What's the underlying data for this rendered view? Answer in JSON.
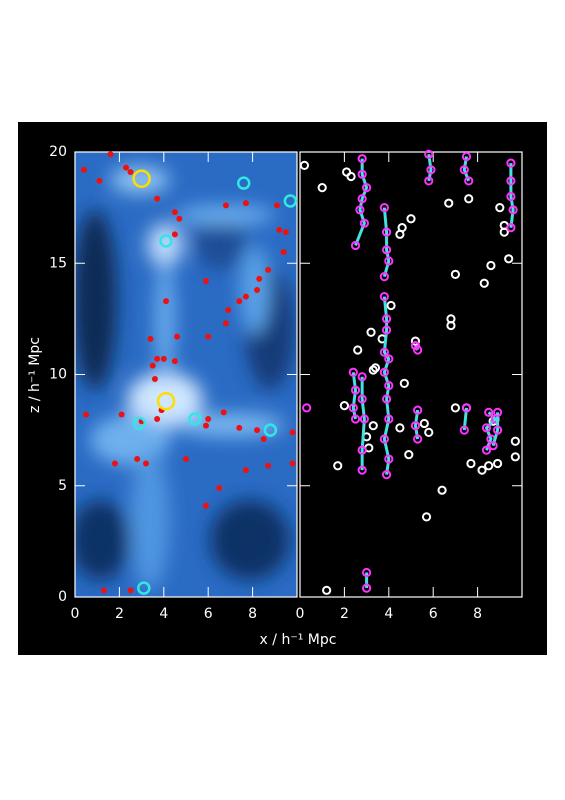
{
  "chart_data": [
    {
      "type": "scatter",
      "xlabel": "x / h⁻¹ Mpc",
      "ylabel": "z / h⁻¹ Mpc",
      "xlim": [
        0,
        10
      ],
      "ylim": [
        0,
        20
      ],
      "xticks": [
        0,
        2,
        4,
        6,
        8
      ],
      "yticks": [
        0,
        5,
        10,
        15,
        20
      ],
      "background": "density",
      "series": [
        {
          "color": "#ee1111",
          "marker": "dot",
          "x": [
            0.4,
            1.6,
            1.1,
            2.3,
            2.5,
            3.7,
            4.5,
            4.7,
            4.5,
            6.8,
            7.7,
            9.1,
            9.2,
            9.5,
            9.4,
            8.7,
            8.3,
            8.2,
            7.7,
            7.4,
            5.9,
            4.1,
            6.9,
            6.8,
            3.4,
            4.6,
            6.0,
            3.7,
            4.0,
            4.5,
            3.5,
            3.6,
            3.9,
            0.5,
            2.1,
            3.0,
            3.7,
            6.0,
            6.7,
            7.4,
            8.2,
            8.5,
            9.8,
            5.9,
            1.8,
            2.8,
            3.2,
            5.0,
            7.7,
            8.7,
            9.8,
            6.5,
            5.9,
            1.3,
            2.5
          ],
          "values": [
            19.2,
            19.9,
            18.7,
            19.3,
            19.1,
            17.9,
            17.3,
            17.0,
            16.3,
            17.6,
            17.7,
            17.6,
            16.5,
            16.4,
            15.5,
            14.7,
            14.3,
            13.8,
            13.5,
            13.3,
            14.2,
            13.3,
            12.9,
            12.3,
            11.6,
            11.7,
            11.7,
            10.7,
            10.7,
            10.6,
            10.4,
            9.8,
            8.4,
            8.2,
            8.2,
            7.9,
            8.0,
            8.0,
            8.3,
            7.6,
            7.5,
            7.1,
            7.4,
            7.7,
            6.0,
            6.2,
            6.0,
            6.2,
            5.7,
            5.9,
            6.0,
            4.9,
            4.1,
            0.3,
            0.3
          ]
        },
        {
          "color": "#33e6e6",
          "marker": "ring",
          "x": [
            4.1,
            7.6,
            9.7,
            2.9,
            5.4,
            8.8,
            3.1
          ],
          "values": [
            16.0,
            18.6,
            17.8,
            7.8,
            8.0,
            7.5,
            0.4
          ]
        },
        {
          "color": "#ffdd00",
          "marker": "big-ring",
          "x": [
            3.0,
            4.1
          ],
          "values": [
            18.8,
            8.8
          ]
        }
      ]
    },
    {
      "type": "scatter",
      "xlim": [
        0,
        10
      ],
      "ylim": [
        0,
        20
      ],
      "xticks": [
        0,
        2,
        4,
        6,
        8
      ],
      "yticks": [
        0,
        5,
        10,
        15,
        20
      ],
      "background": "black",
      "series": [
        {
          "color": "#ffffff",
          "marker": "small-ring",
          "x": [
            0.2,
            1.0,
            2.1,
            2.3,
            5.0,
            4.6,
            4.5,
            6.7,
            7.6,
            9.0,
            9.2,
            9.2,
            9.4,
            8.6,
            8.3,
            7.0,
            4.1,
            6.8,
            6.8,
            3.2,
            3.7,
            5.2,
            2.6,
            3.4,
            3.3,
            4.7,
            2.0,
            7.5,
            7.0,
            8.7,
            5.6,
            5.8,
            3.3,
            3.0,
            4.5,
            3.1,
            1.7,
            4.9,
            6.4,
            5.7,
            7.7,
            8.2,
            8.5,
            8.9,
            9.7,
            9.7,
            1.2
          ],
          "values": [
            19.4,
            18.4,
            19.1,
            18.9,
            17.0,
            16.6,
            16.3,
            17.7,
            17.9,
            17.5,
            16.7,
            16.4,
            15.2,
            14.9,
            14.1,
            14.5,
            13.1,
            12.5,
            12.2,
            11.9,
            11.6,
            11.5,
            11.1,
            10.3,
            10.2,
            9.6,
            8.6,
            8.5,
            8.5,
            7.9,
            7.8,
            7.4,
            7.7,
            7.2,
            7.6,
            6.7,
            5.9,
            6.4,
            4.8,
            3.6,
            6.0,
            5.7,
            5.9,
            6.0,
            7.0,
            6.3,
            0.3
          ]
        },
        {
          "color": "#ff33ff",
          "line_color": "#44e0e0",
          "marker": "small-ring",
          "connect": true,
          "x": [
            2.8,
            2.8,
            3.0,
            2.8,
            2.7,
            2.9,
            2.5
          ],
          "values": [
            19.7,
            19.0,
            18.4,
            17.9,
            17.4,
            16.8,
            15.8
          ]
        },
        {
          "color": "#ff33ff",
          "line_color": "#44e0e0",
          "marker": "small-ring",
          "connect": true,
          "x": [
            3.8,
            3.9,
            3.9,
            4.0,
            3.8
          ],
          "values": [
            17.5,
            16.4,
            15.6,
            15.1,
            14.4
          ]
        },
        {
          "color": "#ff33ff",
          "line_color": "#44e0e0",
          "marker": "small-ring",
          "connect": true,
          "x": [
            5.8,
            5.9,
            5.8
          ],
          "values": [
            19.9,
            19.2,
            18.7
          ]
        },
        {
          "color": "#ff33ff",
          "line_color": "#44e0e0",
          "marker": "small-ring",
          "connect": true,
          "x": [
            7.5,
            7.4,
            7.6
          ],
          "values": [
            19.8,
            19.2,
            18.7
          ]
        },
        {
          "color": "#ff33ff",
          "line_color": "#44e0e0",
          "marker": "small-ring",
          "connect": true,
          "x": [
            9.5,
            9.5,
            9.5,
            9.6,
            9.5
          ],
          "values": [
            19.5,
            18.7,
            18.0,
            17.4,
            16.6
          ]
        },
        {
          "color": "#ff33ff",
          "line_color": "#44e0e0",
          "marker": "small-ring",
          "connect": true,
          "x": [
            3.8,
            3.9,
            3.9,
            3.8,
            4.0,
            3.8,
            4.0,
            3.9,
            4.0,
            3.8,
            4.0,
            3.9
          ],
          "values": [
            13.5,
            12.5,
            12.0,
            11.0,
            10.7,
            10.1,
            9.5,
            8.9,
            8.0,
            7.1,
            6.2,
            5.5
          ]
        },
        {
          "color": "#ff33ff",
          "line_color": "#44e0e0",
          "marker": "small-ring",
          "connect": true,
          "x": [
            2.4,
            2.5,
            2.4,
            2.5
          ],
          "values": [
            10.1,
            9.3,
            8.5,
            8.0
          ]
        },
        {
          "color": "#ff33ff",
          "line_color": "#44e0e0",
          "marker": "small-ring",
          "connect": true,
          "x": [
            2.8,
            2.8,
            2.9,
            2.8,
            2.8
          ],
          "values": [
            9.9,
            8.9,
            8.0,
            6.6,
            5.7
          ]
        },
        {
          "color": "#ff33ff",
          "line_color": "#44e0e0",
          "marker": "small-ring",
          "connect": true,
          "x": [
            5.2,
            5.3
          ],
          "values": [
            11.3,
            11.1
          ]
        },
        {
          "color": "#ff33ff",
          "line_color": "#44e0e0",
          "marker": "small-ring",
          "connect": true,
          "x": [
            5.3,
            5.2,
            5.3
          ],
          "values": [
            8.4,
            7.7,
            7.1
          ]
        },
        {
          "color": "#ff33ff",
          "line_color": "#44e0e0",
          "marker": "small-ring",
          "connect": true,
          "x": [
            7.5,
            7.4
          ],
          "values": [
            8.5,
            7.5
          ]
        },
        {
          "color": "#ff33ff",
          "line_color": "#44e0e0",
          "marker": "small-ring",
          "connect": true,
          "x": [
            8.5,
            8.8,
            8.4,
            8.6,
            8.4
          ],
          "values": [
            8.3,
            8.0,
            7.6,
            7.1,
            6.6
          ]
        },
        {
          "color": "#ff33ff",
          "line_color": "#44e0e0",
          "marker": "small-ring",
          "connect": true,
          "x": [
            8.9,
            8.9,
            8.7
          ],
          "values": [
            8.3,
            7.5,
            6.8
          ]
        },
        {
          "color": "#ff33ff",
          "line_color": "#44e0e0",
          "marker": "small-ring",
          "connect": true,
          "x": [
            3.0,
            3.0
          ],
          "values": [
            1.1,
            0.4
          ]
        },
        {
          "color": "#ff33ff",
          "line_color": "#44e0e0",
          "marker": "small-ring",
          "connect": true,
          "x": [
            0.3
          ],
          "values": [
            8.5
          ]
        }
      ]
    }
  ]
}
